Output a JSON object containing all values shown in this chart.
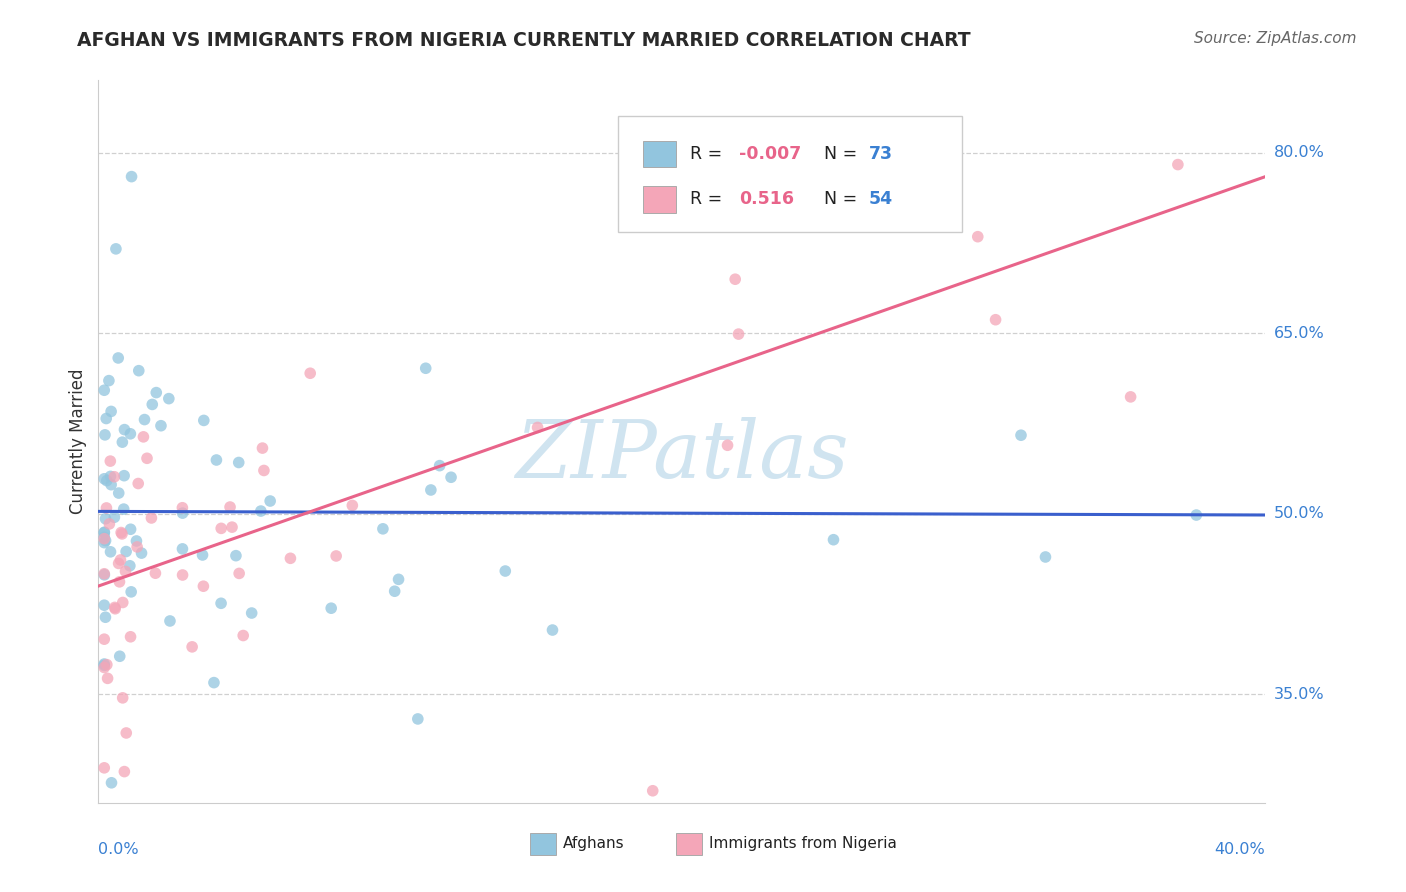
{
  "title": "AFGHAN VS IMMIGRANTS FROM NIGERIA CURRENTLY MARRIED CORRELATION CHART",
  "source": "Source: ZipAtlas.com",
  "ylabel": "Currently Married",
  "ytick_labels": [
    "35.0%",
    "50.0%",
    "65.0%",
    "80.0%"
  ],
  "ytick_values": [
    0.35,
    0.5,
    0.65,
    0.8
  ],
  "xlim": [
    0.0,
    0.4
  ],
  "ylim": [
    0.26,
    0.86
  ],
  "color_blue": "#92c5de",
  "color_pink": "#f4a6b8",
  "color_blue_line": "#3a5fcd",
  "color_pink_line": "#e8648a",
  "watermark_color": "#d0e4f0",
  "legend_r1_label": "R = ",
  "legend_r1_val": "-0.007",
  "legend_n1_label": "N = ",
  "legend_n1_val": "73",
  "legend_r2_label": "R =  ",
  "legend_r2_val": "0.516",
  "legend_n2_label": "N = ",
  "legend_n2_val": "54",
  "color_r": "#e8648a",
  "color_n": "#3a80d2",
  "color_grid": "#d0d0d0",
  "color_spine": "#cccccc",
  "color_axis_label": "#3a80d2"
}
